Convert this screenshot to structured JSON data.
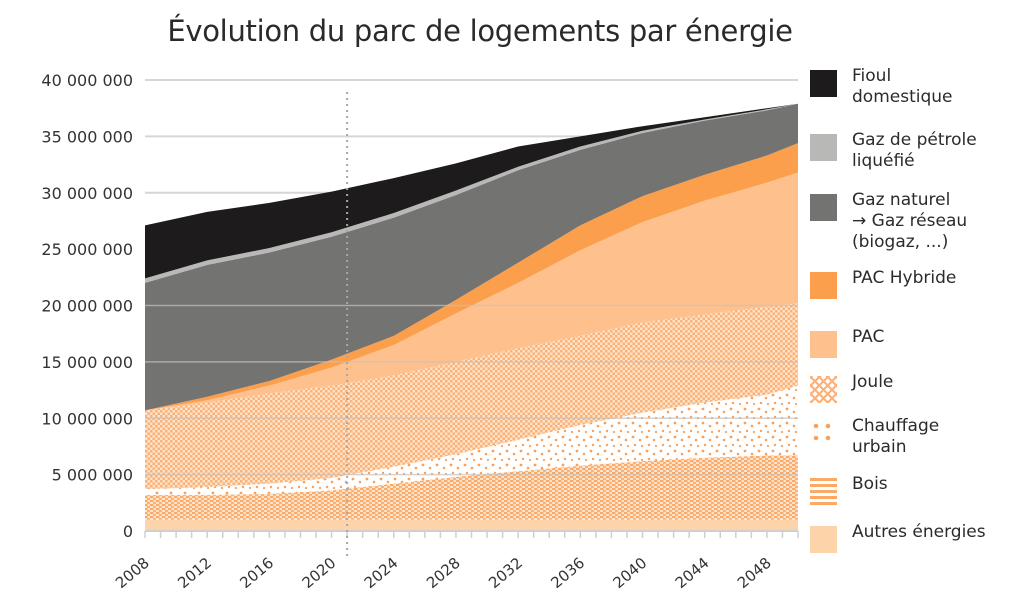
{
  "title": "Évolution du parc de logements par énergie",
  "chart_data": {
    "type": "area",
    "stacked": true,
    "title": "Évolution du parc de logements par énergie",
    "xlabel": "",
    "ylabel": "",
    "x": [
      2008,
      2012,
      2016,
      2020,
      2024,
      2028,
      2032,
      2036,
      2040,
      2044,
      2048,
      2050
    ],
    "x_ticks": [
      "2008",
      "2012",
      "2016",
      "2020",
      "2024",
      "2028",
      "2032",
      "2036",
      "2040",
      "2044",
      "2048"
    ],
    "xlim": [
      2008,
      2050
    ],
    "ylim": [
      0,
      40000000
    ],
    "y_ticks": [
      0,
      5000000,
      10000000,
      15000000,
      20000000,
      25000000,
      30000000,
      35000000,
      40000000
    ],
    "y_tick_labels": [
      "0",
      "5 000 000",
      "10 000 000",
      "15 000 000",
      "20 000 000",
      "25 000 000",
      "30 000 000",
      "35 000 000",
      "40 000 000"
    ],
    "grid": "horizontal",
    "reference_line": {
      "x": 2021,
      "style": "dotted"
    },
    "legend_position": "right",
    "series": [
      {
        "name": "Autres énergies",
        "color": "#fdd3a9",
        "pattern": "solid",
        "values": [
          1000000,
          1000000,
          1000000,
          1000000,
          1000000,
          1000000,
          1000000,
          1000000,
          1000000,
          1000000,
          1000000,
          1000000
        ]
      },
      {
        "name": "Bois",
        "color": "#fba964",
        "pattern": "dashes",
        "values": [
          2200000,
          2200000,
          2300000,
          2600000,
          3200000,
          3800000,
          4300000,
          4800000,
          5200000,
          5500000,
          5700000,
          5700000
        ]
      },
      {
        "name": "Chauffage urbain",
        "color": "#f9a05a",
        "pattern": "dots",
        "values": [
          500000,
          700000,
          900000,
          1100000,
          1500000,
          2000000,
          2800000,
          3600000,
          4300000,
          4900000,
          5400000,
          6200000
        ]
      },
      {
        "name": "Joule",
        "color": "#fbb27a",
        "pattern": "crosshatch",
        "values": [
          7000000,
          7500000,
          8000000,
          8200000,
          8100000,
          8200000,
          8100000,
          7900000,
          8000000,
          7800000,
          7800000,
          7300000
        ]
      },
      {
        "name": "PAC",
        "color": "#fec18d",
        "pattern": "solid",
        "values": [
          0,
          200000,
          700000,
          1600000,
          2700000,
          4300000,
          5800000,
          7600000,
          8900000,
          10100000,
          11000000,
          11600000
        ]
      },
      {
        "name": "PAC Hybride",
        "color": "#fb9f4c",
        "pattern": "solid",
        "values": [
          0,
          300000,
          400000,
          700000,
          800000,
          1200000,
          1800000,
          2200000,
          2300000,
          2300000,
          2400000,
          2600000
        ]
      },
      {
        "name": "Gaz naturel → Gaz réseau (biogaz, ...)",
        "color": "#737371",
        "pattern": "solid",
        "values": [
          11300000,
          11700000,
          11400000,
          10900000,
          10500000,
          9300000,
          8200000,
          6700000,
          5600000,
          4800000,
          4000000,
          3500000
        ]
      },
      {
        "name": "Gaz de pétrole liquéfié",
        "color": "#b8b8b6",
        "pattern": "solid",
        "values": [
          400000,
          400000,
          400000,
          400000,
          400000,
          400000,
          300000,
          300000,
          200000,
          100000,
          100000,
          0
        ]
      },
      {
        "name": "Fioul domestique",
        "color": "#1d1b1c",
        "pattern": "solid",
        "values": [
          4700000,
          4300000,
          4000000,
          3600000,
          3100000,
          2400000,
          1800000,
          900000,
          400000,
          200000,
          100000,
          0
        ]
      }
    ]
  },
  "legend": [
    {
      "label": "Fioul\ndomestique",
      "color": "#1d1b1c",
      "pattern": "solid"
    },
    {
      "label": "Gaz de pétrole\nliquéfié",
      "color": "#b8b8b6",
      "pattern": "solid"
    },
    {
      "label": "Gaz naturel\n→ Gaz réseau\n(biogaz, ...)",
      "color": "#737371",
      "pattern": "solid"
    },
    {
      "label": "PAC Hybride",
      "color": "#fb9f4c",
      "pattern": "solid"
    },
    {
      "label": "PAC",
      "color": "#fec18d",
      "pattern": "solid"
    },
    {
      "label": "Joule",
      "color": "#fbb27a",
      "pattern": "crosshatch"
    },
    {
      "label": "Chauffage\nurbain",
      "color": "#f9a05a",
      "pattern": "dots"
    },
    {
      "label": "Bois",
      "color": "#fba964",
      "pattern": "dashes"
    },
    {
      "label": "Autres énergies",
      "color": "#fdd3a9",
      "pattern": "solid"
    }
  ]
}
